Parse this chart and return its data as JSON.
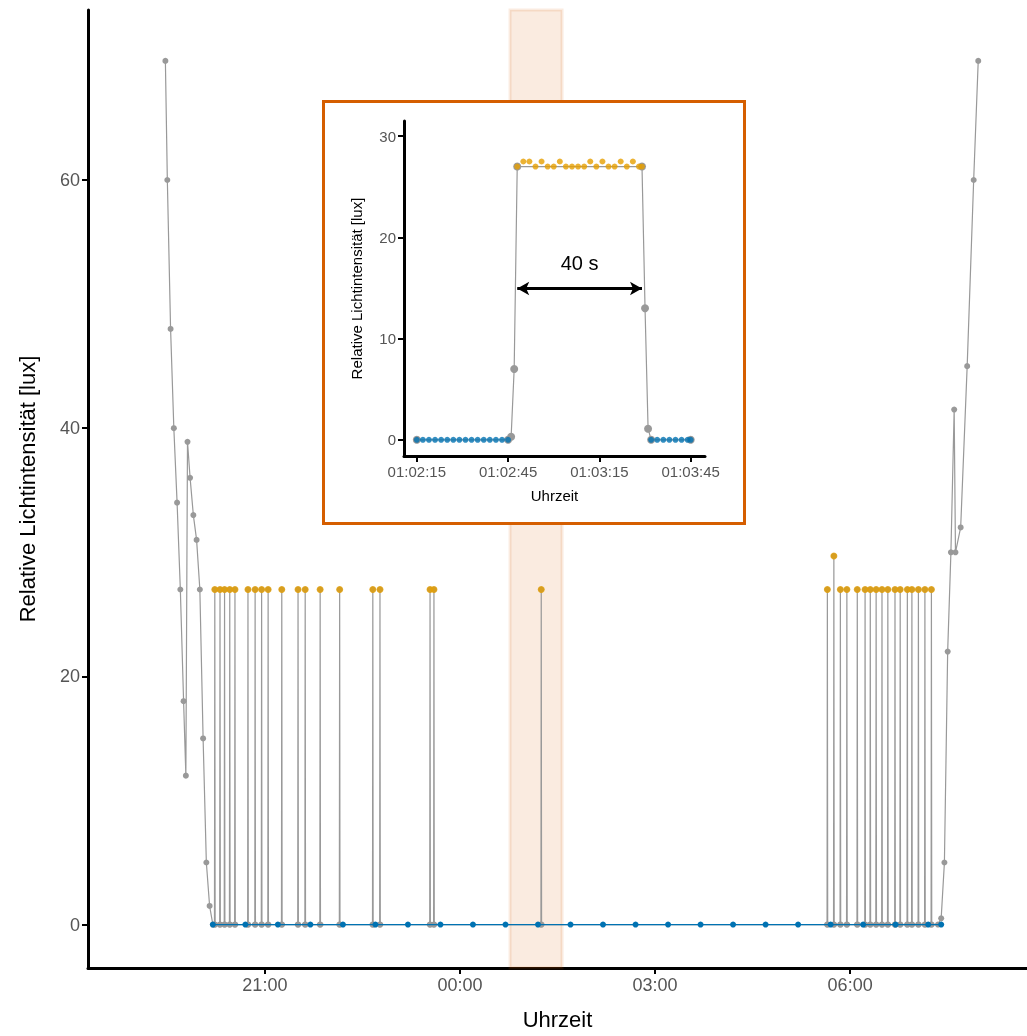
{
  "chart_data": [
    {
      "type": "line",
      "xlabel": "Uhrzeit",
      "ylabel": "Relative Lichtintensität [lux]",
      "xlim": [
        "--01-01T18:16:48",
        "--01-02T08:43:12"
      ],
      "ylim": [
        -3.5,
        73.7
      ],
      "xticks": [
        {
          "value": "--01-01T21:00",
          "label": "21:00"
        },
        {
          "value": "--01-02T00:00",
          "label": "00:00"
        },
        {
          "value": "--01-02T03:00",
          "label": "03:00"
        },
        {
          "value": "--01-02T06:00",
          "label": "06:00"
        }
      ],
      "yticks": [
        0,
        20,
        40,
        60
      ],
      "grid": false,
      "marker": "circle",
      "bands": [
        {
          "axis": "x",
          "from": "--01-02T00:46:12",
          "to": "--01-02T01:34:12",
          "color": "#d55e00"
        }
      ],
      "series": [
        {
          "color": "#999999",
          "x": [
            "--01-01T19:28:12",
            "--01-01T19:30",
            "--01-01T19:33",
            "--01-01T19:36",
            "--01-01T19:39",
            "--01-01T19:42",
            "--01-01T19:45",
            "--01-01T19:47:06",
            "--01-01T19:48:36",
            "--01-01T19:51",
            "--01-01T19:54",
            "--01-01T19:57",
            "--01-01T20:00",
            "--01-01T20:03",
            "--01-01T20:06",
            "--01-01T20:09",
            "--01-01T20:12",
            "--01-01T20:13:30",
            "--01-01T20:13:48",
            "--01-01T20:14:06",
            "--01-01T20:18:18",
            "--01-01T20:18:36",
            "--01-01T20:18:54",
            "--01-01T20:22:30",
            "--01-01T20:22:48",
            "--01-01T20:23:06",
            "--01-01T20:27:18",
            "--01-01T20:27:36",
            "--01-01T20:27:54",
            "--01-01T20:32:06",
            "--01-01T20:32:24",
            "--01-01T20:32:42",
            "--01-01T20:44:06",
            "--01-01T20:44:24",
            "--01-01T20:44:42",
            "--01-01T20:50:42",
            "--01-01T20:51:00",
            "--01-01T20:51:18",
            "--01-01T20:56:42",
            "--01-01T20:57:00",
            "--01-01T20:57:18",
            "--01-01T21:02:42",
            "--01-01T21:03:00",
            "--01-01T21:03:18",
            "--01-01T21:15:18",
            "--01-01T21:15:36",
            "--01-01T21:15:54",
            "--01-01T21:30:18",
            "--01-01T21:30:36",
            "--01-01T21:30:54",
            "--01-01T21:36:54",
            "--01-01T21:37:12",
            "--01-01T21:37:30",
            "--01-01T21:50:42",
            "--01-01T21:51:00",
            "--01-01T21:51:18",
            "--01-01T22:08:42",
            "--01-01T22:09:00",
            "--01-01T22:09:18",
            "--01-01T22:39:18",
            "--01-01T22:39:36",
            "--01-01T22:39:54",
            "--01-01T22:45:54",
            "--01-01T22:46:12",
            "--01-01T22:46:30",
            "--01-01T23:32:06",
            "--01-01T23:32:24",
            "--01-01T23:32:42",
            "--01-01T23:35:42",
            "--01-01T23:36:00",
            "--01-01T23:36:18",
            "--01-02T01:14:42",
            "--01-02T01:15:00",
            "--01-02T01:15:18",
            "--01-02T05:38:42",
            "--01-02T05:39:00",
            "--01-02T05:39:18",
            "--01-02T05:44:42",
            "--01-02T05:45:00",
            "--01-02T05:45:18",
            "--01-02T05:50:42",
            "--01-02T05:51:00",
            "--01-02T05:51:18",
            "--01-02T05:56:42",
            "--01-02T05:57:00",
            "--01-02T05:57:18",
            "--01-02T06:06:18",
            "--01-02T06:06:36",
            "--01-02T06:06:54",
            "--01-02T06:13:30",
            "--01-02T06:13:48",
            "--01-02T06:14:06",
            "--01-02T06:18:18",
            "--01-02T06:18:36",
            "--01-02T06:18:54",
            "--01-02T06:23:42",
            "--01-02T06:24:00",
            "--01-02T06:24:18",
            "--01-02T06:29:06",
            "--01-02T06:29:24",
            "--01-02T06:29:42",
            "--01-02T06:34:30",
            "--01-02T06:34:48",
            "--01-02T06:35:06",
            "--01-02T06:41:06",
            "--01-02T06:41:24",
            "--01-02T06:41:42",
            "--01-02T06:45:54",
            "--01-02T06:46:12",
            "--01-02T06:46:30",
            "--01-02T06:52:30",
            "--01-02T06:52:48",
            "--01-02T06:53:06",
            "--01-02T06:56:42",
            "--01-02T06:57:00",
            "--01-02T06:57:18",
            "--01-02T07:02:42",
            "--01-02T07:03:00",
            "--01-02T07:03:18",
            "--01-02T07:08:42",
            "--01-02T07:09:00",
            "--01-02T07:09:18",
            "--01-02T07:14:42",
            "--01-02T07:15:00",
            "--01-02T07:15:18",
            "--01-02T07:21",
            "--01-02T07:24",
            "--01-02T07:27",
            "--01-02T07:30",
            "--01-02T07:33",
            "--01-02T07:36",
            "--01-02T07:37:12",
            "--01-02T07:42",
            "--01-02T07:48",
            "--01-02T07:54",
            "--01-02T07:58:12"
          ],
          "values": [
            69.6,
            60,
            48,
            40,
            34,
            27,
            18,
            12,
            38.9,
            36,
            33,
            31,
            27,
            15,
            5,
            1.5,
            0,
            0,
            27,
            0,
            0,
            27,
            0,
            0,
            27,
            0,
            0,
            27,
            0,
            0,
            27,
            0,
            0,
            27,
            0,
            0,
            27,
            0,
            0,
            27,
            0,
            0,
            27,
            0,
            0,
            27,
            0,
            0,
            27,
            0,
            0,
            27,
            0,
            0,
            27,
            0,
            0,
            27,
            0,
            0,
            27,
            0,
            0,
            27,
            0,
            0,
            27,
            0,
            0,
            27,
            0,
            0,
            27,
            0,
            0,
            27,
            0,
            0,
            29.7,
            0,
            0,
            27,
            0,
            0,
            27,
            0,
            0,
            27,
            0,
            0,
            27,
            0,
            0,
            27,
            0,
            0,
            27,
            0,
            0,
            27,
            0,
            0,
            27,
            0,
            0,
            27,
            0,
            0,
            27,
            0,
            0,
            27,
            0,
            0,
            27,
            0,
            0,
            27,
            0,
            0,
            27,
            0,
            0,
            27,
            0,
            0,
            0.5,
            5,
            22,
            30,
            41.5,
            30,
            32,
            45,
            60,
            69.6
          ]
        },
        {
          "color": "#0072b2",
          "x": [
            "--01-01T20:12",
            "--01-01T20:42",
            "--01-01T21:12",
            "--01-01T21:42",
            "--01-01T22:12",
            "--01-01T22:42",
            "--01-01T23:12",
            "--01-01T23:42",
            "--01-02T00:12",
            "--01-02T00:42",
            "--01-02T01:12",
            "--01-02T01:42",
            "--01-02T02:12",
            "--01-02T02:42",
            "--01-02T03:12",
            "--01-02T03:42",
            "--01-02T04:12",
            "--01-02T04:42",
            "--01-02T05:12",
            "--01-02T05:42",
            "--01-02T06:12",
            "--01-02T06:42",
            "--01-02T07:12",
            "--01-02T07:24"
          ],
          "values": [
            0,
            0,
            0,
            0,
            0,
            0,
            0,
            0,
            0,
            0,
            0,
            0,
            0,
            0,
            0,
            0,
            0,
            0,
            0,
            0,
            0,
            0,
            0,
            0
          ]
        },
        {
          "type": "scatter",
          "color": "#e69f00",
          "x": [
            "--01-01T20:13:48",
            "--01-01T20:18:36",
            "--01-01T20:22:48",
            "--01-01T20:27:36",
            "--01-01T20:32:24",
            "--01-01T20:44:24",
            "--01-01T20:51:00",
            "--01-01T20:57:00",
            "--01-01T21:03:00",
            "--01-01T21:15:36",
            "--01-01T21:30:36",
            "--01-01T21:37:12",
            "--01-01T21:51:00",
            "--01-01T22:09:00",
            "--01-01T22:39:36",
            "--01-01T22:46:12",
            "--01-01T23:32:24",
            "--01-01T23:36:00",
            "--01-02T01:15:00",
            "--01-02T05:39:00",
            "--01-02T05:45:00",
            "--01-02T05:51:00",
            "--01-02T05:57:00",
            "--01-02T06:06:36",
            "--01-02T06:13:48",
            "--01-02T06:18:36",
            "--01-02T06:24:00",
            "--01-02T06:29:24",
            "--01-02T06:34:48",
            "--01-02T06:41:24",
            "--01-02T06:46:12",
            "--01-02T06:52:48",
            "--01-02T06:57:00",
            "--01-02T07:03:00",
            "--01-02T07:09:00",
            "--01-02T07:15:00"
          ],
          "values": [
            27,
            27,
            27,
            27,
            27,
            27,
            27,
            27,
            27,
            27,
            27,
            27,
            27,
            27,
            27,
            27,
            27,
            27,
            27,
            27,
            29.7,
            27,
            27,
            27,
            27,
            27,
            27,
            27,
            27,
            27,
            27,
            27,
            27,
            27,
            27,
            27
          ]
        }
      ]
    },
    {
      "type": "line",
      "xlabel": "Uhrzeit",
      "ylabel": "Relative Lichtintensität [lux]",
      "xlim": [
        1.036333,
        1.063806
      ],
      "ylim": [
        -1.6,
        31.5
      ],
      "xticks": [
        {
          "value": 1.0375,
          "label": "01:02:15"
        },
        {
          "value": 1.045833,
          "label": "01:02:45"
        },
        {
          "value": 1.054167,
          "label": "01:03:15"
        },
        {
          "value": 1.0625,
          "label": "01:03:45"
        }
      ],
      "yticks": [
        0,
        10,
        20,
        30
      ],
      "grid": false,
      "marker": "circle",
      "annotations": [
        "40 s"
      ],
      "series": [
        {
          "color": "#999999",
          "x": [
            1.0375,
            1.045833,
            1.046111,
            1.046389,
            1.046667,
            1.058056,
            1.058333,
            1.058611,
            1.058889,
            1.0625
          ],
          "values": [
            0,
            0,
            0.3,
            7,
            27,
            27,
            13,
            1.1,
            0,
            0
          ]
        },
        {
          "type": "scatter",
          "color": "#0072b2",
          "x": [
            1.0375,
            1.038056,
            1.038611,
            1.039167,
            1.039722,
            1.040278,
            1.040833,
            1.041389,
            1.041944,
            1.0425,
            1.043056,
            1.043611,
            1.044167,
            1.044722,
            1.045278,
            1.045833,
            1.058889,
            1.059444,
            1.06,
            1.060556,
            1.061111,
            1.061667,
            1.062222,
            1.0625
          ],
          "values": [
            0,
            0,
            0,
            0,
            0,
            0,
            0,
            0,
            0,
            0,
            0,
            0,
            0,
            0,
            0,
            0,
            0,
            0,
            0,
            0,
            0,
            0,
            0,
            0
          ]
        },
        {
          "type": "scatter",
          "color": "#e69f00",
          "x": [
            1.046667,
            1.047222,
            1.047778,
            1.048333,
            1.048889,
            1.049444,
            1.05,
            1.050556,
            1.051111,
            1.051667,
            1.052222,
            1.052778,
            1.053333,
            1.053889,
            1.054444,
            1.055,
            1.055556,
            1.056111,
            1.056667,
            1.057222,
            1.057778,
            1.058056
          ],
          "values": [
            27,
            27.5,
            27.5,
            27,
            27.5,
            27,
            27,
            27.5,
            27,
            27,
            27,
            27,
            27.5,
            27,
            27.5,
            27,
            27,
            27.5,
            27,
            27.5,
            27,
            27
          ]
        }
      ]
    }
  ]
}
